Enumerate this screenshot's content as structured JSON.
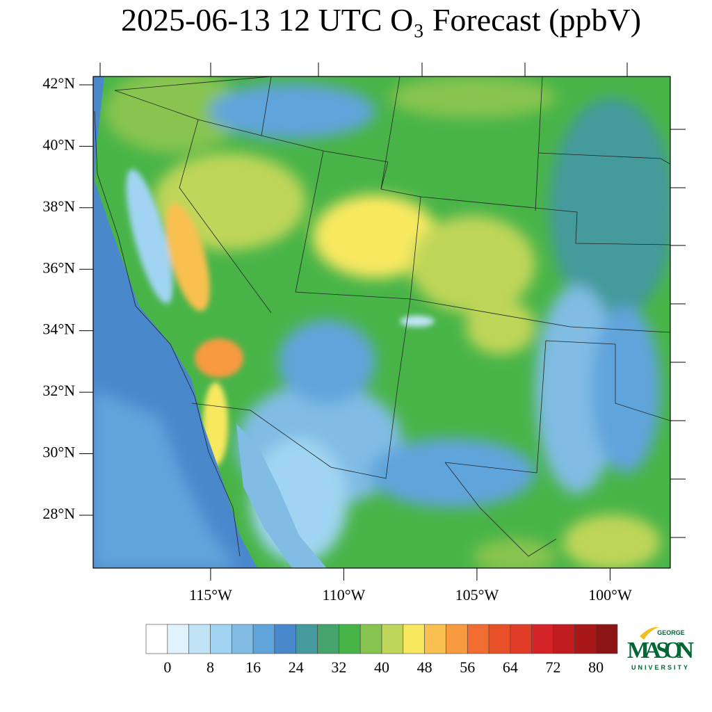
{
  "map": {
    "title": "2025-06-13 12 UTC O₃ Forecast (ppbV)",
    "ylim": [
      26.28,
      42.27
    ],
    "xlim": [
      -119.41,
      -97.74
    ],
    "lat_ticks": [
      {
        "value": 42,
        "label": "42°N"
      },
      {
        "value": 40,
        "label": "40°N"
      },
      {
        "value": 38,
        "label": "38°N"
      },
      {
        "value": 36,
        "label": "36°N"
      },
      {
        "value": 34,
        "label": "34°N"
      },
      {
        "value": 32,
        "label": "32°N"
      },
      {
        "value": 30,
        "label": "30°N"
      },
      {
        "value": 28,
        "label": "28°N"
      }
    ],
    "lon_ticks": [
      {
        "value": -115,
        "label": "115°W"
      },
      {
        "value": -110,
        "label": "110°W"
      },
      {
        "value": -105,
        "label": "105°W"
      },
      {
        "value": -100,
        "label": "100°W"
      }
    ],
    "colorbar": {
      "colors": [
        "#ffffff",
        "#e0f2fc",
        "#c0e4f6",
        "#a0d4f2",
        "#80bce4",
        "#60a4dc",
        "#4a88cc",
        "#449a9c",
        "#44a46c",
        "#48b448",
        "#88c450",
        "#c0d65a",
        "#f8e860",
        "#f8c050",
        "#f89a40",
        "#f06c30",
        "#e85028",
        "#e03c28",
        "#d42428",
        "#c01c20",
        "#a81818",
        "#8c1414"
      ],
      "ticks": [
        0,
        8,
        16,
        24,
        32,
        40,
        48,
        56,
        64,
        72,
        80
      ]
    },
    "logo": {
      "top": "GEORGE",
      "name": "MASON",
      "bottom": "UNIVERSITY"
    }
  }
}
